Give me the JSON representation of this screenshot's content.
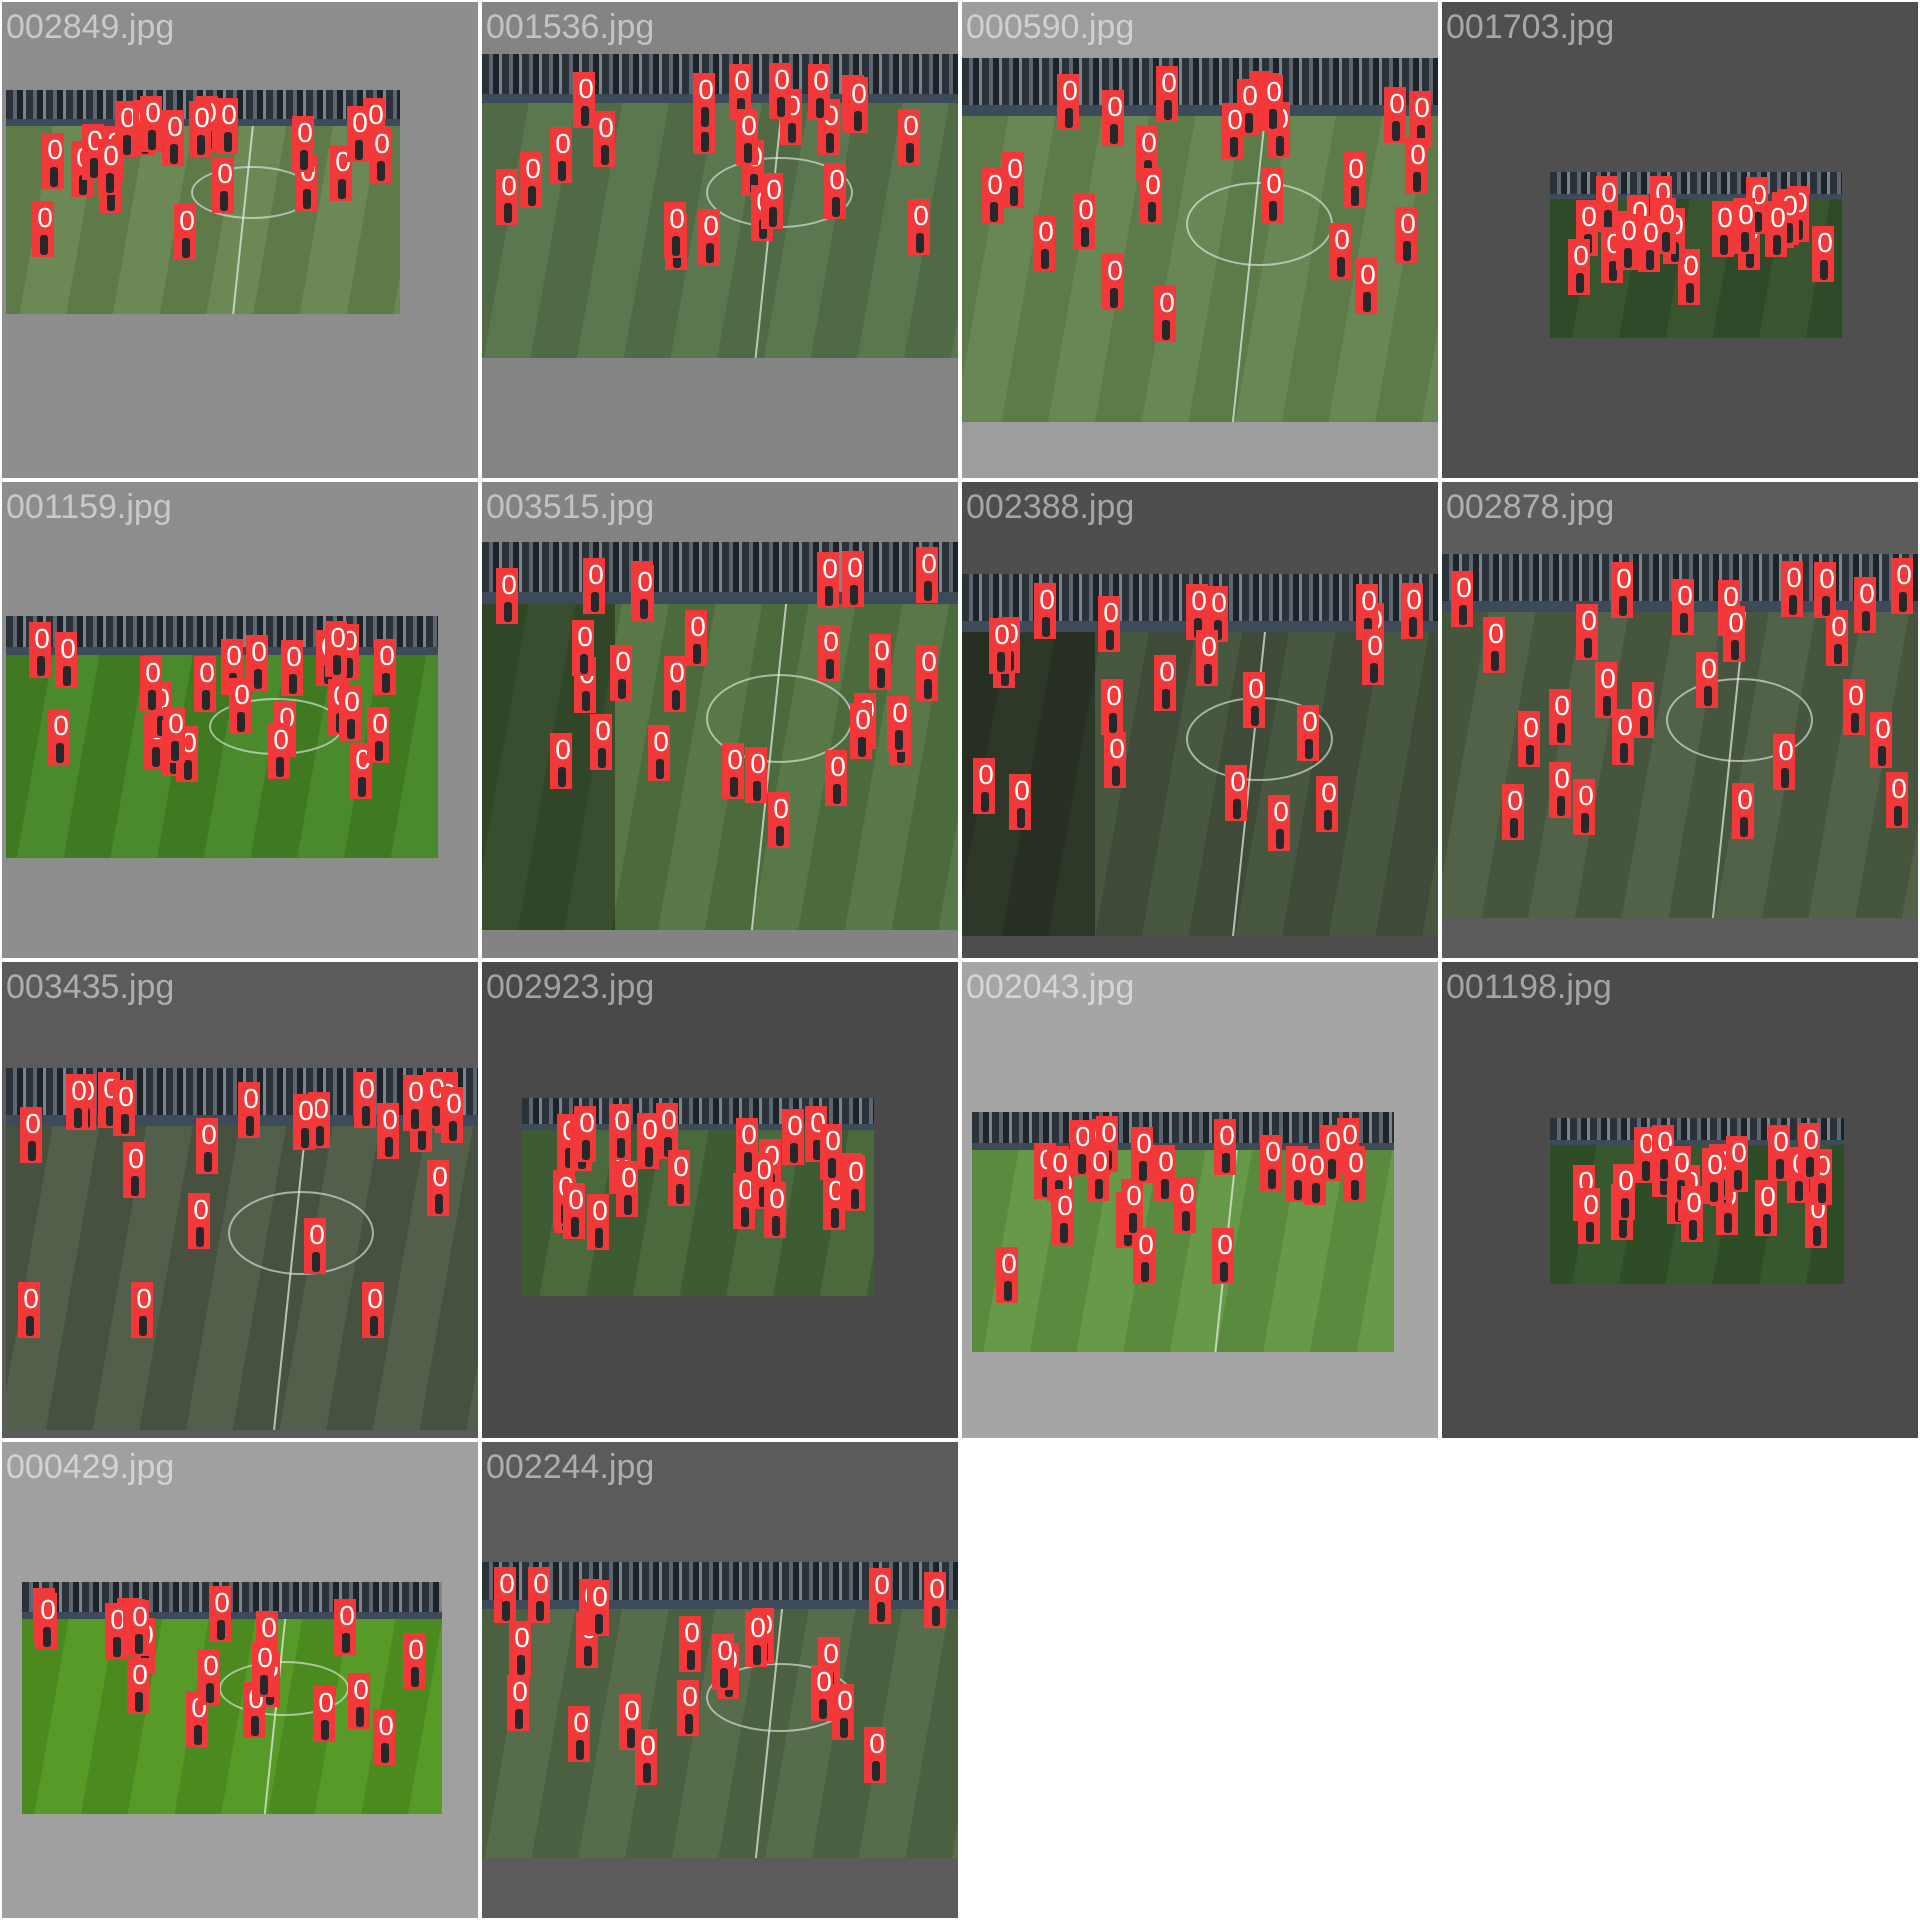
{
  "grid": {
    "background": "#ffffff",
    "tiles": [
      {
        "file": "002849.jpg",
        "bg": "#8d8d8d",
        "label_color": "#c9c9c9",
        "g1": "#5e7a49",
        "g2": "#6b8855",
        "stands": true,
        "shade": false,
        "mid_line": true,
        "circle": true,
        "dets": 22
      },
      {
        "file": "001536.jpg",
        "bg": "#848484",
        "label_color": "#c3c3c3",
        "g1": "#4f6a44",
        "g2": "#5b7750",
        "stands": true,
        "shade": false,
        "mid_line": true,
        "circle": true,
        "dets": 24
      },
      {
        "file": "000590.jpg",
        "bg": "#9d9d9d",
        "label_color": "#d0d0d0",
        "g1": "#5c7b49",
        "g2": "#688755",
        "stands": true,
        "shade": false,
        "mid_line": true,
        "circle": true,
        "dets": 25
      },
      {
        "file": "001703.jpg",
        "bg": "#4f4f4f",
        "label_color": "#a7a7a7",
        "g1": "#2f4a28",
        "g2": "#395530",
        "stands": true,
        "shade": false,
        "mid_line": false,
        "circle": false,
        "dets": 22
      },
      {
        "file": "001159.jpg",
        "bg": "#8d8d8d",
        "label_color": "#c9c9c9",
        "g1": "#3f7a23",
        "g2": "#4a8a2c",
        "stands": true,
        "shade": false,
        "mid_line": false,
        "circle": true,
        "dets": 24
      },
      {
        "file": "003515.jpg",
        "bg": "#838383",
        "label_color": "#c2c2c2",
        "g1": "#4c6b3c",
        "g2": "#587848",
        "stands": true,
        "shade": true,
        "mid_line": true,
        "circle": true,
        "dets": 26
      },
      {
        "file": "002388.jpg",
        "bg": "#4e4e4e",
        "label_color": "#a6a6a6",
        "g1": "#3e4b38",
        "g2": "#48573f",
        "stands": true,
        "shade": true,
        "mid_line": true,
        "circle": true,
        "dets": 22
      },
      {
        "file": "002878.jpg",
        "bg": "#5c5c5c",
        "label_color": "#afafaf",
        "g1": "#45553e",
        "g2": "#516249",
        "stands": true,
        "shade": false,
        "mid_line": true,
        "circle": true,
        "dets": 26
      },
      {
        "file": "003435.jpg",
        "bg": "#5b5b5b",
        "label_color": "#aeaeae",
        "g1": "#46523f",
        "g2": "#525f4a",
        "stands": true,
        "shade": false,
        "mid_line": true,
        "circle": true,
        "dets": 24
      },
      {
        "file": "002923.jpg",
        "bg": "#494949",
        "label_color": "#a3a3a3",
        "g1": "#3e5c34",
        "g2": "#4a6a3e",
        "stands": true,
        "shade": false,
        "mid_line": false,
        "circle": false,
        "dets": 24
      },
      {
        "file": "002043.jpg",
        "bg": "#a5a5a5",
        "label_color": "#d5d5d5",
        "g1": "#5a8a3d",
        "g2": "#679a48",
        "stands": true,
        "shade": false,
        "mid_line": true,
        "circle": false,
        "dets": 24
      },
      {
        "file": "001198.jpg",
        "bg": "#4b4b4b",
        "label_color": "#a4a4a4",
        "g1": "#2e4c26",
        "g2": "#37582e",
        "stands": true,
        "shade": false,
        "mid_line": false,
        "circle": false,
        "dets": 22
      },
      {
        "file": "000429.jpg",
        "bg": "#a0a0a0",
        "label_color": "#d3d3d3",
        "g1": "#4b8a1f",
        "g2": "#579a28",
        "stands": true,
        "shade": false,
        "mid_line": true,
        "circle": true,
        "dets": 20
      },
      {
        "file": "002244.jpg",
        "bg": "#5b5b5b",
        "label_color": "#aeaeae",
        "g1": "#4b6040",
        "g2": "#566c4b",
        "stands": true,
        "shade": false,
        "mid_line": true,
        "circle": true,
        "dets": 22
      }
    ],
    "detection_label": "0",
    "detection_color": "#f23838"
  }
}
